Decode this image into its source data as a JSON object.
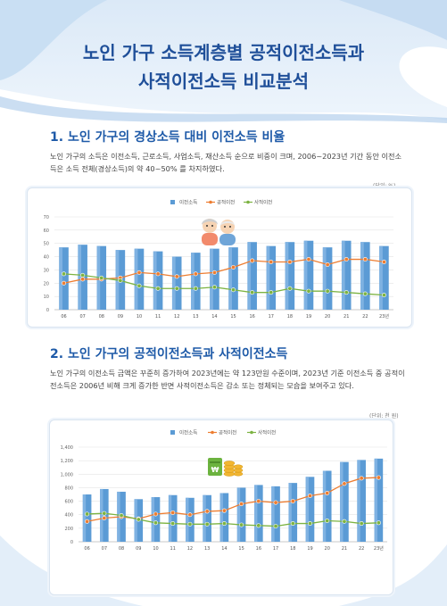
{
  "header": {
    "title_line1": "노인 가구 소득계층별 공적이전소득과",
    "title_line2": "사적이전소득 비교분석"
  },
  "section1": {
    "number": "1.",
    "title": "노인 가구의 경상소득 대비 이전소득 비율",
    "paragraph": "노인 가구의 소득은 이전소득, 근로소득, 사업소득, 재산소득 순으로 비중이 크며, 2006~2023년 기간 동안 이전소득은 소득 전체(경상소득)의 약 40~50% 를 차지하였다.",
    "unit": "(단위: %)"
  },
  "section2": {
    "number": "2.",
    "title": "노인 가구의 공적이전소득과 사적이전소득",
    "paragraph": "노인 가구의 이전소득 금액은 꾸준히 증가하여 2023년에는 약 123만원 수준이며, 2023년 기준 이전소득 중 공적이전소득은 2006년 비해 크게 증가한 반면 사적이전소득은 감소 또는 정체되는 모습을 보여주고 있다.",
    "unit": "(단위: 천 원)"
  },
  "colors": {
    "bar": "#5b9bd5",
    "public": "#ed7d31",
    "private": "#7cb342",
    "title": "#1f4f99"
  },
  "chart_data": [
    {
      "type": "bar",
      "categories": [
        "06",
        "07",
        "08",
        "09",
        "10",
        "11",
        "12",
        "13",
        "14",
        "15",
        "16",
        "17",
        "18",
        "19",
        "20",
        "21",
        "22",
        "23년"
      ],
      "series": [
        {
          "name": "이전소득",
          "type": "bar",
          "values": [
            47,
            49,
            48,
            45,
            46,
            44,
            40,
            43,
            46,
            47,
            51,
            48,
            51,
            52,
            47,
            52,
            51,
            48
          ]
        },
        {
          "name": "공적이전",
          "type": "line",
          "values": [
            20,
            23,
            23,
            24,
            28,
            27,
            25,
            27,
            28,
            32,
            37,
            36,
            36,
            38,
            34,
            38,
            38,
            36
          ]
        },
        {
          "name": "사적이전",
          "type": "line",
          "values": [
            27,
            26,
            24,
            22,
            18,
            16,
            16,
            16,
            17,
            15,
            13,
            13,
            16,
            14,
            14,
            13,
            12,
            11
          ]
        }
      ],
      "ylim": [
        0,
        70
      ],
      "yticks": [
        0,
        10,
        20,
        30,
        40,
        50,
        60,
        70
      ],
      "legend": "top-center",
      "grid": true
    },
    {
      "type": "bar",
      "categories": [
        "06",
        "07",
        "08",
        "09",
        "10",
        "11",
        "12",
        "13",
        "14",
        "15",
        "16",
        "17",
        "18",
        "19",
        "20",
        "21",
        "22",
        "23년"
      ],
      "series": [
        {
          "name": "이전소득",
          "type": "bar",
          "values": [
            700,
            780,
            740,
            630,
            660,
            690,
            650,
            690,
            720,
            800,
            840,
            820,
            870,
            960,
            1050,
            1180,
            1210,
            1230
          ]
        },
        {
          "name": "공적이전",
          "type": "line",
          "values": [
            300,
            350,
            370,
            340,
            410,
            430,
            400,
            450,
            460,
            560,
            600,
            580,
            600,
            680,
            720,
            860,
            940,
            950
          ]
        },
        {
          "name": "사적이전",
          "type": "line",
          "values": [
            410,
            420,
            390,
            330,
            280,
            270,
            260,
            260,
            270,
            250,
            240,
            230,
            270,
            270,
            310,
            300,
            270,
            280
          ]
        }
      ],
      "ylim": [
        0,
        1400
      ],
      "yticks": [
        0,
        200,
        400,
        600,
        800,
        1000,
        1200,
        1400
      ],
      "yticklabels": [
        "0",
        "200",
        "400",
        "600",
        "800",
        "1,000",
        "1,200",
        "1,400"
      ],
      "legend": "top-center",
      "grid": true
    }
  ]
}
